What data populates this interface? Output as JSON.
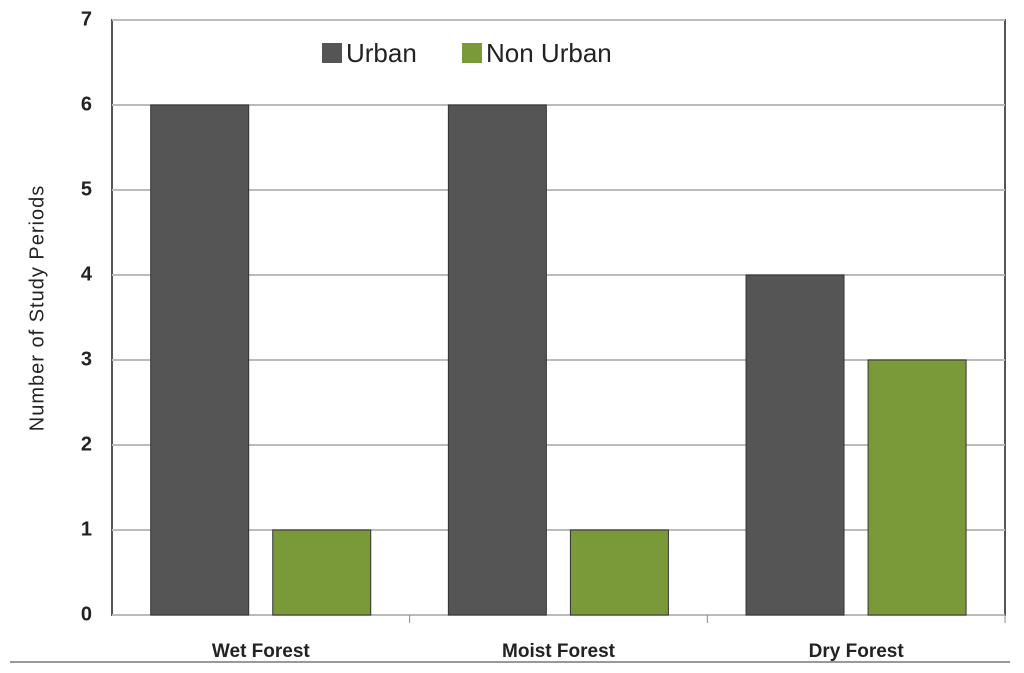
{
  "chart_data": {
    "type": "bar",
    "y_label": "Number of Study Periods",
    "categories": [
      "Wet Forest",
      "Moist Forest",
      "Dry Forest"
    ],
    "series": [
      {
        "name": "Urban",
        "color": "#555555",
        "values": [
          6,
          6,
          4
        ]
      },
      {
        "name": "Non Urban",
        "color": "#7a9a3a",
        "values": [
          1,
          1,
          3
        ]
      }
    ],
    "ylim": [
      0,
      7
    ],
    "yticks": [
      0,
      1,
      2,
      3,
      4,
      5,
      6,
      7
    ],
    "grid": true,
    "legend": "top"
  }
}
